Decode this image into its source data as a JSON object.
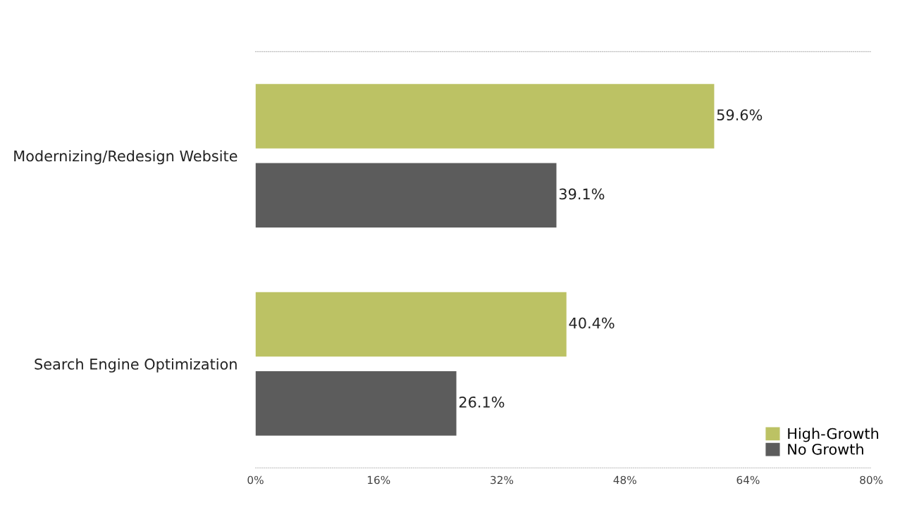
{
  "chart_data": {
    "type": "bar",
    "orientation": "horizontal",
    "categories": [
      "Modernizing/Redesign Website",
      "Search Engine Optimization"
    ],
    "series": [
      {
        "name": "High-Growth",
        "color": "#bcc264",
        "values": [
          59.6,
          40.4
        ]
      },
      {
        "name": "No Growth",
        "color": "#5c5c5c",
        "values": [
          39.1,
          26.1
        ]
      }
    ],
    "xlim": [
      0,
      80
    ],
    "xticks": [
      {
        "value": 0,
        "label": "0%"
      },
      {
        "value": 16,
        "label": "16%"
      },
      {
        "value": 32,
        "label": "32%"
      },
      {
        "value": 48,
        "label": "48%"
      },
      {
        "value": 64,
        "label": "64%"
      },
      {
        "value": 80,
        "label": "80%"
      }
    ],
    "value_labels": [
      [
        "59.6%",
        "40.4%"
      ],
      [
        "39.1%",
        "26.1%"
      ]
    ],
    "legend": "bottom right",
    "grid": false
  }
}
